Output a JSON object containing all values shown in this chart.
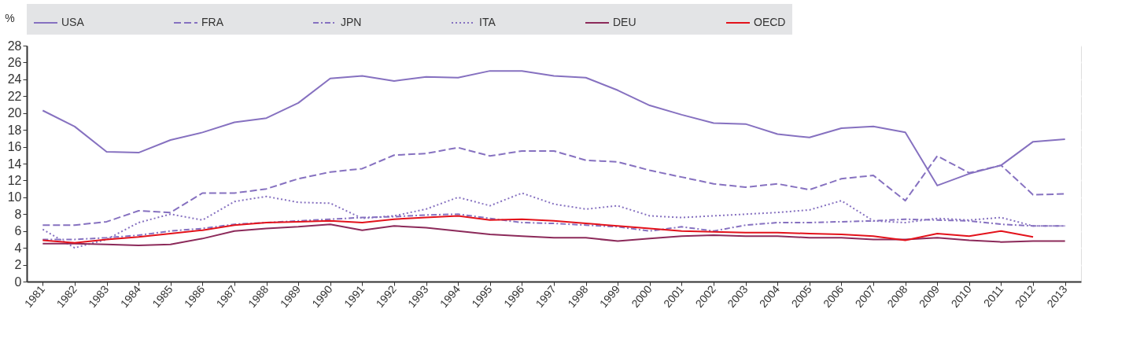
{
  "chart_data": {
    "type": "line",
    "ylabel": "%",
    "categories": [
      "1981",
      "1982",
      "1983",
      "1984",
      "1985",
      "1986",
      "1987",
      "1988",
      "1989",
      "1990",
      "1991",
      "1992",
      "1993",
      "1994",
      "1995",
      "1996",
      "1997",
      "1998",
      "1999",
      "2000",
      "2001",
      "2002",
      "2003",
      "2004",
      "2005",
      "2006",
      "2007",
      "2008",
      "2009",
      "2010",
      "2011",
      "2012",
      "2013"
    ],
    "ylim": [
      0,
      28
    ],
    "yticks": [
      0,
      2,
      4,
      6,
      8,
      10,
      12,
      14,
      16,
      18,
      20,
      22,
      24,
      26,
      28
    ],
    "grid": true,
    "legend": "top",
    "marker": "none",
    "series": [
      {
        "name": "USA",
        "color": "#8671c0",
        "line_style": "solid",
        "values": [
          20.3,
          18.4,
          15.4,
          15.3,
          16.8,
          17.7,
          18.9,
          19.4,
          21.2,
          24.1,
          24.4,
          23.8,
          24.3,
          24.2,
          25.0,
          25.0,
          24.4,
          24.2,
          22.7,
          20.9,
          19.8,
          18.8,
          18.7,
          17.5,
          17.1,
          18.2,
          18.4,
          17.7,
          11.4,
          12.8,
          13.8,
          16.6,
          16.9
        ]
      },
      {
        "name": "FRA",
        "color": "#8671c0",
        "line_style": "dashed",
        "values": [
          6.7,
          6.7,
          7.1,
          8.4,
          8.2,
          10.5,
          10.5,
          11.0,
          12.2,
          13.0,
          13.4,
          15.0,
          15.2,
          15.9,
          14.9,
          15.5,
          15.5,
          14.4,
          14.2,
          13.2,
          12.4,
          11.6,
          11.2,
          11.6,
          10.9,
          12.2,
          12.6,
          9.6,
          14.9,
          12.9,
          13.8,
          10.3,
          10.4
        ]
      },
      {
        "name": "JPN",
        "color": "#8671c0",
        "line_style": "dashdot",
        "values": [
          5.0,
          5.0,
          5.2,
          5.5,
          6.0,
          6.3,
          6.8,
          7.0,
          7.2,
          7.4,
          7.6,
          7.7,
          7.9,
          8.0,
          7.5,
          7.0,
          6.9,
          6.7,
          6.5,
          6.0,
          6.5,
          6.0,
          6.7,
          7.0,
          7.0,
          7.1,
          7.2,
          7.4,
          7.3,
          7.2,
          6.8,
          6.6,
          6.6
        ]
      },
      {
        "name": "ITA",
        "color": "#8671c0",
        "line_style": "dotted",
        "values": [
          6.2,
          4.0,
          5.0,
          7.0,
          8.0,
          7.3,
          9.5,
          10.1,
          9.4,
          9.3,
          7.5,
          7.8,
          8.6,
          10.0,
          9.0,
          10.5,
          9.2,
          8.6,
          9.0,
          7.8,
          7.6,
          7.8,
          8.0,
          8.2,
          8.5,
          9.6,
          7.2,
          7.0,
          7.5,
          7.3,
          7.6,
          6.6,
          6.6
        ]
      },
      {
        "name": "DEU",
        "color": "#8c2a5a",
        "line_style": "solid",
        "values": [
          4.5,
          4.5,
          4.4,
          4.3,
          4.4,
          5.1,
          6.0,
          6.3,
          6.5,
          6.8,
          6.1,
          6.6,
          6.4,
          6.0,
          5.6,
          5.4,
          5.2,
          5.2,
          4.8,
          5.1,
          5.4,
          5.5,
          5.4,
          5.4,
          5.2,
          5.2,
          5.0,
          5.0,
          5.2,
          4.9,
          4.7,
          4.8,
          4.8
        ]
      },
      {
        "name": "OECD",
        "color": "#e3121b",
        "line_style": "solid",
        "values": [
          4.9,
          4.6,
          5.0,
          5.3,
          5.7,
          6.1,
          6.7,
          7.0,
          7.1,
          7.2,
          7.0,
          7.4,
          7.6,
          7.8,
          7.3,
          7.4,
          7.2,
          6.9,
          6.6,
          6.3,
          6.0,
          5.9,
          5.8,
          5.8,
          5.7,
          5.6,
          5.4,
          4.9,
          5.7,
          5.4,
          6.0,
          5.3,
          null
        ]
      }
    ]
  }
}
